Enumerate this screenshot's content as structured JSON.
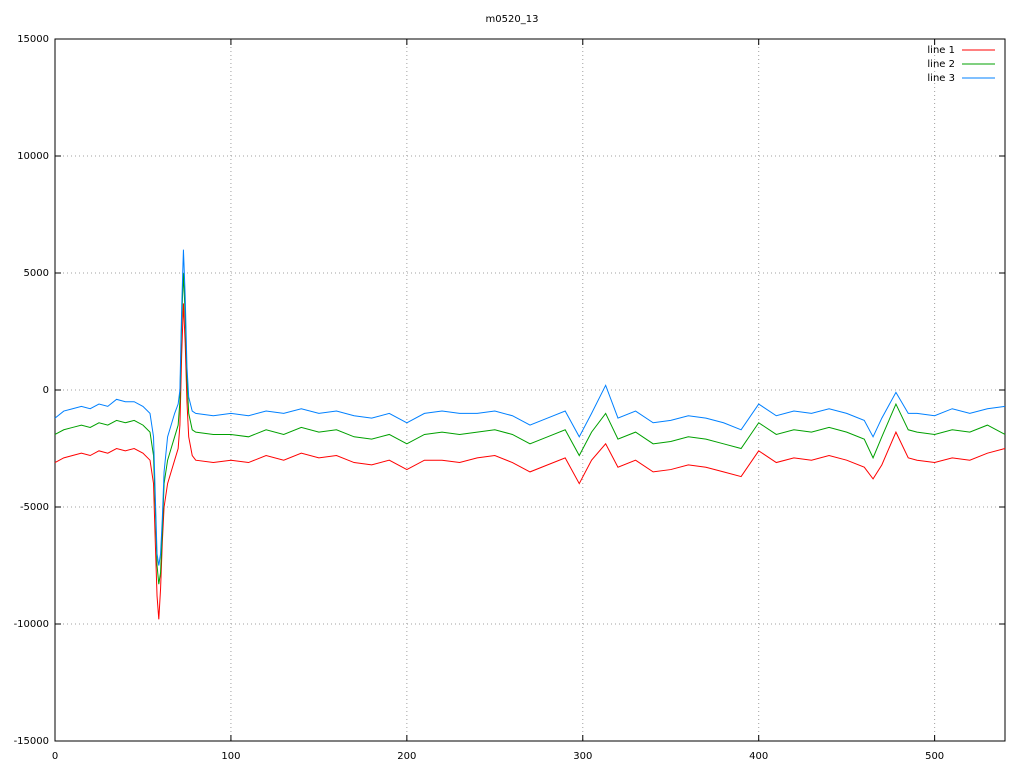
{
  "chart_data": {
    "type": "line",
    "title": "m0520_13",
    "x": [
      0,
      5,
      10,
      15,
      20,
      25,
      30,
      35,
      40,
      45,
      50,
      54,
      56,
      57,
      58,
      59,
      60,
      61,
      62,
      64,
      66,
      68,
      70,
      71,
      72,
      73,
      74,
      75,
      76,
      78,
      80,
      90,
      100,
      110,
      120,
      130,
      140,
      150,
      160,
      170,
      180,
      190,
      200,
      210,
      220,
      230,
      240,
      250,
      260,
      270,
      280,
      290,
      298,
      305,
      313,
      320,
      330,
      340,
      350,
      360,
      370,
      380,
      390,
      400,
      410,
      420,
      430,
      440,
      450,
      460,
      465,
      470,
      478,
      485,
      490,
      500,
      510,
      520,
      530,
      540
    ],
    "series": [
      {
        "name": "line 1",
        "color": "#ff0000",
        "values": [
          -3100,
          -2900,
          -2800,
          -2700,
          -2800,
          -2600,
          -2700,
          -2500,
          -2600,
          -2500,
          -2700,
          -3000,
          -4000,
          -6500,
          -8800,
          -9800,
          -8500,
          -6500,
          -5000,
          -4000,
          -3500,
          -3000,
          -2500,
          -1500,
          1500,
          3700,
          2000,
          -500,
          -2000,
          -2800,
          -3000,
          -3100,
          -3000,
          -3100,
          -2800,
          -3000,
          -2700,
          -2900,
          -2800,
          -3100,
          -3200,
          -3000,
          -3400,
          -3000,
          -3000,
          -3100,
          -2900,
          -2800,
          -3100,
          -3500,
          -3200,
          -2900,
          -4000,
          -3000,
          -2300,
          -3300,
          -3000,
          -3500,
          -3400,
          -3200,
          -3300,
          -3500,
          -3700,
          -2600,
          -3100,
          -2900,
          -3000,
          -2800,
          -3000,
          -3300,
          -3800,
          -3200,
          -1800,
          -2900,
          -3000,
          -3100,
          -2900,
          -3000,
          -2700,
          -2500
        ]
      },
      {
        "name": "line 2",
        "color": "#00a000",
        "values": [
          -1900,
          -1700,
          -1600,
          -1500,
          -1600,
          -1400,
          -1500,
          -1300,
          -1400,
          -1300,
          -1500,
          -1800,
          -2800,
          -5000,
          -7500,
          -8300,
          -7800,
          -6000,
          -4000,
          -3000,
          -2500,
          -2000,
          -1500,
          -500,
          3000,
          5000,
          3200,
          500,
          -1000,
          -1700,
          -1800,
          -1900,
          -1900,
          -2000,
          -1700,
          -1900,
          -1600,
          -1800,
          -1700,
          -2000,
          -2100,
          -1900,
          -2300,
          -1900,
          -1800,
          -1900,
          -1800,
          -1700,
          -1900,
          -2300,
          -2000,
          -1700,
          -2800,
          -1800,
          -1000,
          -2100,
          -1800,
          -2300,
          -2200,
          -2000,
          -2100,
          -2300,
          -2500,
          -1400,
          -1900,
          -1700,
          -1800,
          -1600,
          -1800,
          -2100,
          -2900,
          -2000,
          -600,
          -1700,
          -1800,
          -1900,
          -1700,
          -1800,
          -1500,
          -1900
        ]
      },
      {
        "name": "line 3",
        "color": "#0080ff",
        "values": [
          -1200,
          -900,
          -800,
          -700,
          -800,
          -600,
          -700,
          -400,
          -500,
          -500,
          -700,
          -1000,
          -2000,
          -4500,
          -7000,
          -7500,
          -7000,
          -5500,
          -3500,
          -2000,
          -1500,
          -1000,
          -600,
          0,
          3500,
          6000,
          4000,
          1000,
          -300,
          -900,
          -1000,
          -1100,
          -1000,
          -1100,
          -900,
          -1000,
          -800,
          -1000,
          -900,
          -1100,
          -1200,
          -1000,
          -1400,
          -1000,
          -900,
          -1000,
          -1000,
          -900,
          -1100,
          -1500,
          -1200,
          -900,
          -2000,
          -1000,
          200,
          -1200,
          -900,
          -1400,
          -1300,
          -1100,
          -1200,
          -1400,
          -1700,
          -600,
          -1100,
          -900,
          -1000,
          -800,
          -1000,
          -1300,
          -2000,
          -1200,
          -100,
          -1000,
          -1000,
          -1100,
          -800,
          -1000,
          -800,
          -700
        ]
      }
    ],
    "xlim": [
      0,
      540
    ],
    "xticks": [
      0,
      100,
      200,
      300,
      400,
      500
    ],
    "ylim": [
      -15000,
      15000
    ],
    "yticks": [
      -15000,
      -10000,
      -5000,
      0,
      5000,
      10000,
      15000
    ],
    "grid": true,
    "legend": "top-right"
  }
}
